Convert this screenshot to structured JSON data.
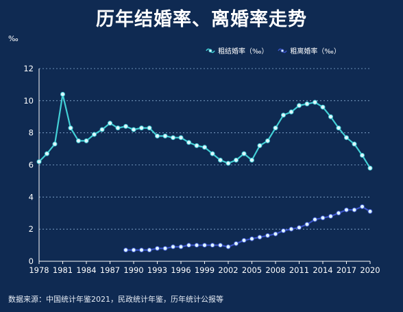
{
  "page": {
    "title": "历年结婚率、离婚率走势",
    "unit": "‰",
    "source": "数据来源：中国统计年鉴2021，民政统计年鉴，历年统计公报等"
  },
  "legend": [
    {
      "label": "粗结婚率（‰）",
      "color": "#43d0d6"
    },
    {
      "label": "粗离婚率（‰）",
      "color": "#2f3fa8"
    }
  ],
  "chart_data": {
    "type": "line",
    "title": "历年结婚率、离婚率走势",
    "ylabel": "‰",
    "xlim": [
      1978,
      2020
    ],
    "ylim": [
      0,
      12
    ],
    "yticks": [
      0,
      2,
      4,
      6,
      8,
      10,
      12
    ],
    "xticks": [
      1978,
      1981,
      1984,
      1987,
      1990,
      1993,
      1996,
      1999,
      2002,
      2005,
      2008,
      2011,
      2014,
      2017,
      2020
    ],
    "grid": "horizontal-dashed",
    "legend_position": "top-right",
    "series": [
      {
        "name": "粗结婚率（‰）",
        "color": "#43d0d6",
        "points": [
          [
            1978,
            6.2
          ],
          [
            1979,
            6.7
          ],
          [
            1980,
            7.3
          ],
          [
            1981,
            10.4
          ],
          [
            1982,
            8.3
          ],
          [
            1983,
            7.5
          ],
          [
            1984,
            7.5
          ],
          [
            1985,
            7.9
          ],
          [
            1986,
            8.2
          ],
          [
            1987,
            8.6
          ],
          [
            1988,
            8.3
          ],
          [
            1989,
            8.4
          ],
          [
            1990,
            8.2
          ],
          [
            1991,
            8.3
          ],
          [
            1992,
            8.3
          ],
          [
            1993,
            7.8
          ],
          [
            1994,
            7.8
          ],
          [
            1995,
            7.7
          ],
          [
            1996,
            7.7
          ],
          [
            1997,
            7.4
          ],
          [
            1998,
            7.2
          ],
          [
            1999,
            7.1
          ],
          [
            2000,
            6.7
          ],
          [
            2001,
            6.3
          ],
          [
            2002,
            6.1
          ],
          [
            2003,
            6.3
          ],
          [
            2004,
            6.7
          ],
          [
            2005,
            6.3
          ],
          [
            2006,
            7.2
          ],
          [
            2007,
            7.5
          ],
          [
            2008,
            8.3
          ],
          [
            2009,
            9.1
          ],
          [
            2010,
            9.3
          ],
          [
            2011,
            9.7
          ],
          [
            2012,
            9.8
          ],
          [
            2013,
            9.9
          ],
          [
            2014,
            9.6
          ],
          [
            2015,
            9.0
          ],
          [
            2016,
            8.3
          ],
          [
            2017,
            7.7
          ],
          [
            2018,
            7.3
          ],
          [
            2019,
            6.6
          ],
          [
            2020,
            5.8
          ]
        ]
      },
      {
        "name": "粗离婚率（‰）",
        "color": "#2f3fa8",
        "points": [
          [
            1989,
            0.7
          ],
          [
            1990,
            0.7
          ],
          [
            1991,
            0.7
          ],
          [
            1992,
            0.7
          ],
          [
            1993,
            0.8
          ],
          [
            1994,
            0.8
          ],
          [
            1995,
            0.9
          ],
          [
            1996,
            0.9
          ],
          [
            1997,
            1.0
          ],
          [
            1998,
            1.0
          ],
          [
            1999,
            1.0
          ],
          [
            2000,
            1.0
          ],
          [
            2001,
            1.0
          ],
          [
            2002,
            0.9
          ],
          [
            2003,
            1.1
          ],
          [
            2004,
            1.3
          ],
          [
            2005,
            1.4
          ],
          [
            2006,
            1.5
          ],
          [
            2007,
            1.6
          ],
          [
            2008,
            1.7
          ],
          [
            2009,
            1.9
          ],
          [
            2010,
            2.0
          ],
          [
            2011,
            2.1
          ],
          [
            2012,
            2.3
          ],
          [
            2013,
            2.6
          ],
          [
            2014,
            2.7
          ],
          [
            2015,
            2.8
          ],
          [
            2016,
            3.0
          ],
          [
            2017,
            3.2
          ],
          [
            2018,
            3.2
          ],
          [
            2019,
            3.4
          ],
          [
            2020,
            3.1
          ]
        ]
      }
    ]
  }
}
